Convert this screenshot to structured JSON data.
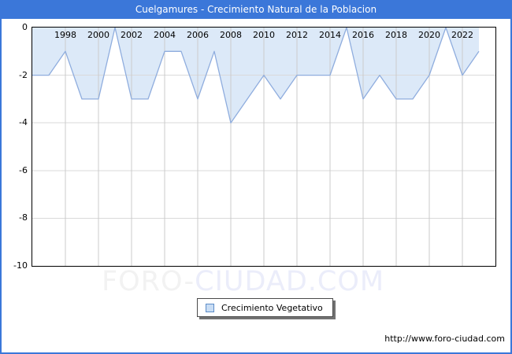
{
  "window": {
    "title": "Cuelgamures - Crecimiento Natural de la Poblacion"
  },
  "chart_data": {
    "type": "area",
    "title": "Cuelgamures - Crecimiento Natural de la Poblacion",
    "series": [
      {
        "name": "Crecimiento Vegetativo",
        "x": [
          1996,
          1997,
          1998,
          1999,
          2000,
          2001,
          2002,
          2003,
          2004,
          2005,
          2006,
          2007,
          2008,
          2009,
          2010,
          2011,
          2012,
          2013,
          2014,
          2015,
          2016,
          2017,
          2018,
          2019,
          2020,
          2021,
          2022,
          2023
        ],
        "values": [
          -2,
          -2,
          -1,
          -3,
          -3,
          0,
          -3,
          -3,
          -1,
          -1,
          -3,
          -1,
          -4,
          -3,
          -2,
          -3,
          -2,
          -2,
          -2,
          0,
          -3,
          -2,
          -3,
          -3,
          -2,
          0,
          -2,
          -1
        ]
      }
    ],
    "xlabel": "",
    "ylabel": "",
    "x_axis": {
      "min": 1996,
      "max": 2024,
      "ticks": [
        1998,
        2000,
        2002,
        2004,
        2006,
        2008,
        2010,
        2012,
        2014,
        2016,
        2018,
        2020,
        2022
      ]
    },
    "y_axis": {
      "min": -10,
      "max": 0,
      "ticks": [
        0,
        -2,
        -4,
        -6,
        -8,
        -10
      ]
    },
    "grid": true,
    "legend_position": "bottom-center",
    "line_color": "#8fadde",
    "fill_color": "#dce9f8",
    "grid_color_v": "#cbcbcb",
    "grid_color_h": "#dadada"
  },
  "legend": {
    "label": "Crecimiento Vegetativo"
  },
  "watermark": {
    "text_part1": "FORO-",
    "text_part2": "CIUDAD.COM"
  },
  "footer": {
    "url": "http://www.foro-ciudad.com"
  }
}
